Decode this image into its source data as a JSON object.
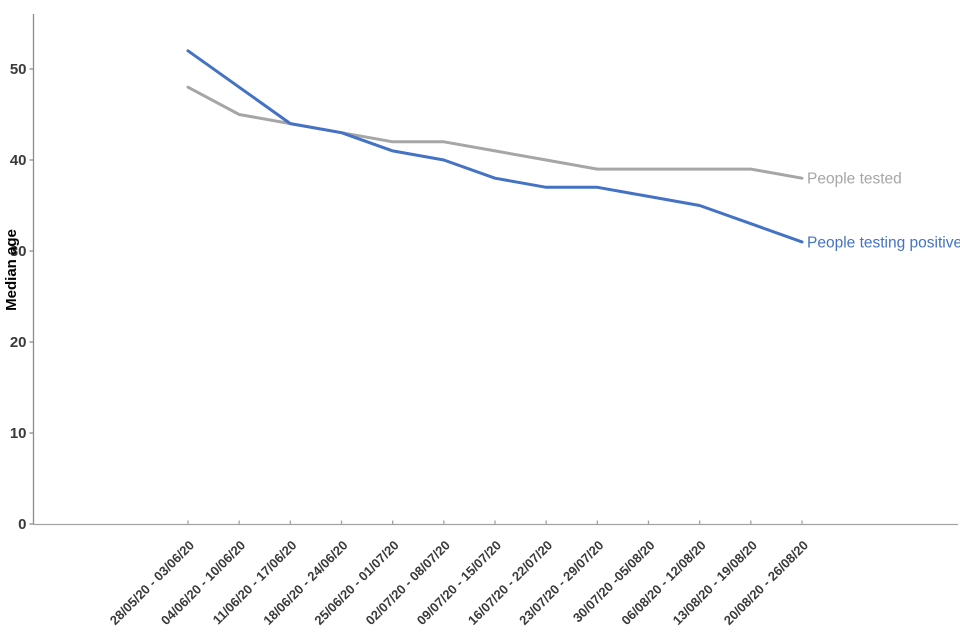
{
  "chart_data": {
    "type": "line",
    "title": "",
    "xlabel": "",
    "ylabel": "Median age",
    "ylim": [
      0,
      56
    ],
    "yticks": [
      0,
      10,
      20,
      30,
      40,
      50
    ],
    "grid": false,
    "legend_position": "line-end-labels-right",
    "categories": [
      "28/05/20 - 03/06/20",
      "04/06/20 - 10/06/20",
      "11/06/20 - 17/06/20",
      "18/06/20 - 24/06/20",
      "25/06/20 - 01/07/20",
      "02/07/20 - 08/07/20",
      "09/07/20 - 15/07/20",
      "16/07/20 - 22/07/20",
      "23/07/20 - 29/07/20",
      "30/07/20 -05/08/20",
      "06/08/20 - 12/08/20",
      "13/08/20 - 19/08/20",
      "20/08/20 - 26/08/20"
    ],
    "series": [
      {
        "name": "People tested",
        "color": "#A6A6A6",
        "values": [
          48,
          45,
          44,
          43,
          42,
          42,
          41,
          40,
          39,
          39,
          39,
          39,
          38
        ]
      },
      {
        "name": "People testing positive",
        "color": "#4472C4",
        "values": [
          52,
          48,
          44,
          43,
          41,
          40,
          38,
          37,
          37,
          36,
          35,
          33,
          31
        ]
      }
    ],
    "colors": {
      "y_axis_line": "#8C8C8C",
      "x_axis_line": "#A3A3A3",
      "tick_label": "#3A3A3A",
      "axis_title": "#000000"
    }
  }
}
